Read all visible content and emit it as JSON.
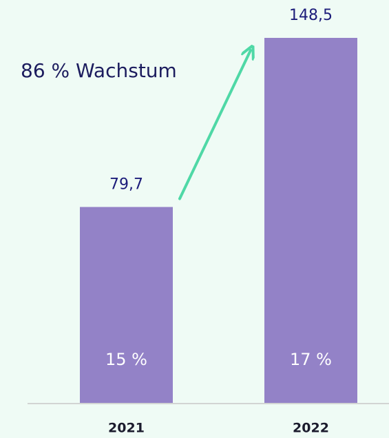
{
  "chart_data": {
    "type": "bar",
    "annotation": "86 % Wachstum",
    "categories": [
      "2021",
      "2022"
    ],
    "values": [
      79.7,
      148.5
    ],
    "value_labels": [
      "79,7",
      "148,5"
    ],
    "inner_labels": [
      "15 %",
      "17 %"
    ],
    "color": "#9382c7"
  }
}
